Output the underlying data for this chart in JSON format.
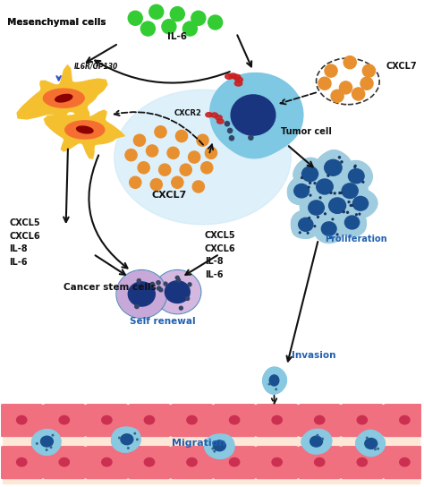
{
  "bg_color": "#ffffff",
  "fig_width": 4.74,
  "fig_height": 5.44,
  "dpi": 100,
  "labels": {
    "mesenchymal": "Mesenchymal cells",
    "il6r": "IL6R/GP130",
    "il6": "IL-6",
    "cxcl7_top": "CXCL7",
    "cxcr2": "CXCR2",
    "cxcl7_mid": "CXCL7",
    "tumor_cell": "Tumor cell",
    "cxcl_left": "CXCL5\nCXCL6\nIL-8\nIL-6",
    "cxcl_right": "CXCL5\nCXCL6\nIL-8\nIL-6",
    "cancer_stem": "Cancer stem cells",
    "self_renewal": "Self renewal",
    "proliferation": "Proliferation",
    "invasion": "Invasion",
    "migration": "Migration"
  },
  "colors": {
    "tumor_cell_body": "#7ec8e3",
    "tumor_cell_nucleus": "#1a3580",
    "il6_dots": "#33cc33",
    "cxcl7_dots": "#e89030",
    "glow": "#d0eaf8",
    "stem_cell_body1": "#c8a8d8",
    "stem_cell_body2": "#d4b8e0",
    "stem_cell_nucleus": "#1a3580",
    "prolif_cell_body": "#a0cce0",
    "prolif_cell_nucleus": "#1a5090",
    "migration_cell_body": "#88c8e0",
    "migration_cell_border": "#55aacc",
    "migration_cell_nucleus": "#1a5090",
    "epithelial_cell": "#f07080",
    "epithelial_bg": "#fde8d8",
    "epithelial_nucleus": "#cc3050",
    "red_receptor": "#cc2020",
    "mesen_outer": "#f5c030",
    "mesen_inner": "#f57030",
    "mesen_nucleus": "#8b0000",
    "arrow_color": "#111111",
    "label_blue": "#2060b0",
    "label_black": "#111111"
  }
}
